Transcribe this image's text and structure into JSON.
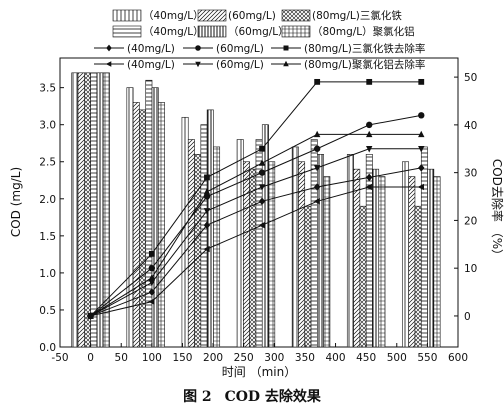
{
  "caption": {
    "label": "图 2",
    "text": "COD 去除效果"
  },
  "chart_data": {
    "type": "bar",
    "x": [
      0,
      90,
      180,
      270,
      360,
      450,
      540
    ],
    "xlabel": "时间 （min）",
    "ylabel_left": "COD (mg/L)",
    "ylabel_right": "COD去除率 （%）",
    "xlim": [
      -50,
      600
    ],
    "ylim_left": [
      0,
      3.9
    ],
    "ylim_right": [
      -6.5,
      54
    ],
    "xticks": [
      -50,
      0,
      50,
      100,
      150,
      200,
      250,
      300,
      350,
      400,
      450,
      500,
      550,
      600
    ],
    "yticks_left": [
      0.0,
      0.5,
      1.0,
      1.5,
      2.0,
      2.5,
      3.0,
      3.5
    ],
    "yticks_right": [
      0,
      10,
      20,
      30,
      40,
      50
    ],
    "bar_series": [
      {
        "name": "（40mg/L）",
        "group": "三氯化铁",
        "pattern": "vlines",
        "values": [
          3.7,
          3.5,
          3.1,
          2.8,
          2.7,
          2.6,
          2.5
        ]
      },
      {
        "name": "(60mg/L)",
        "group": "三氯化铁",
        "pattern": "diag",
        "values": [
          3.7,
          3.3,
          2.8,
          2.5,
          2.5,
          2.4,
          2.3
        ]
      },
      {
        "name": "(80mg/L)三氯化铁",
        "group": "三氯化铁",
        "pattern": "cross",
        "values": [
          3.7,
          3.2,
          2.6,
          2.4,
          1.9,
          1.9,
          1.9
        ]
      },
      {
        "name": "（40mg/L）",
        "group": "聚氯化铝",
        "pattern": "hlines",
        "values": [
          3.7,
          3.6,
          3.0,
          2.8,
          2.8,
          2.6,
          2.7
        ]
      },
      {
        "name": "（60mg/L）",
        "group": "聚氯化铝",
        "pattern": "vdense",
        "values": [
          3.7,
          3.5,
          3.2,
          3.0,
          2.6,
          2.4,
          2.4
        ]
      },
      {
        "name": "（80mg/L）聚氯化铝",
        "group": "聚氯化铝",
        "pattern": "grid",
        "values": [
          3.7,
          3.3,
          2.7,
          2.5,
          2.3,
          2.3,
          2.3
        ]
      }
    ],
    "line_series": [
      {
        "name": "(40mg/L)",
        "group": "三氯化铁去除率",
        "marker": "diamond",
        "x": [
          0,
          100,
          190,
          280,
          370,
          455,
          540
        ],
        "values": [
          0,
          5,
          19,
          24,
          27,
          29,
          31
        ]
      },
      {
        "name": "(60mg/L)",
        "group": "三氯化铁去除率",
        "marker": "circle",
        "x": [
          0,
          100,
          190,
          280,
          370,
          455,
          540
        ],
        "values": [
          0,
          10,
          25,
          30,
          35,
          40,
          42
        ]
      },
      {
        "name": "(80mg/L)三氯化铁去除率",
        "group": "三氯化铁去除率",
        "marker": "square",
        "x": [
          0,
          100,
          190,
          280,
          370,
          455,
          540
        ],
        "values": [
          0,
          13,
          29,
          35,
          49,
          49,
          49
        ]
      },
      {
        "name": "(40mg/L)",
        "group": "聚氯化铝去除率",
        "marker": "tri-left",
        "x": [
          0,
          100,
          190,
          280,
          370,
          455,
          540
        ],
        "values": [
          0,
          3,
          14,
          19,
          24,
          27,
          27
        ]
      },
      {
        "name": "(60mg/L)",
        "group": "聚氯化铝去除率",
        "marker": "tri-down",
        "x": [
          0,
          100,
          190,
          280,
          370,
          455,
          540
        ],
        "values": [
          0,
          7,
          22,
          27,
          31,
          35,
          35
        ]
      },
      {
        "name": "(80mg/L)聚氯化铝去除率",
        "group": "聚氯化铝去除率",
        "marker": "tri-up",
        "x": [
          0,
          100,
          190,
          280,
          370,
          455,
          540
        ],
        "values": [
          0,
          8,
          26,
          32,
          38,
          38,
          38
        ]
      }
    ],
    "legend_position": "top"
  },
  "colors": {
    "ink": "#111111",
    "bar_fill": "#ffffff"
  }
}
